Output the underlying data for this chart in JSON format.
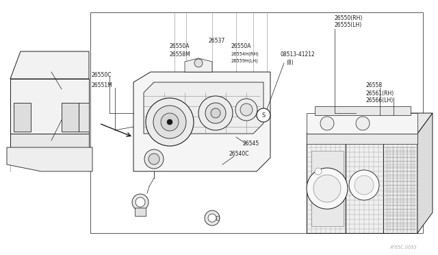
{
  "bg_color": "#ffffff",
  "line_color": "#1a1a1a",
  "gray": "#888888",
  "lightgray": "#cccccc",
  "darkgray": "#555555",
  "fs_label": 5.5,
  "fs_small": 4.8,
  "watermark": "Aᴰ65C.0093",
  "labels": {
    "top_rh": "26550(RH)",
    "top_lh": "26555(LH)",
    "l_26550c": "26550C",
    "l_26551m": "26551M",
    "l_26550a_l": "26550A",
    "l_26558m": "26558M",
    "l_26537": "26537",
    "l_26550a_r": "26550A",
    "l_26554h": "26554H(RH)",
    "l_26559h": "26559H(LH)",
    "l_08513": "08513-41212",
    "l_8": "(8)",
    "l_26558": "26558",
    "l_26561": "26561(RH)",
    "l_26566": "26566(LH)",
    "l_26545": "26545",
    "l_26540c": "26540C"
  }
}
